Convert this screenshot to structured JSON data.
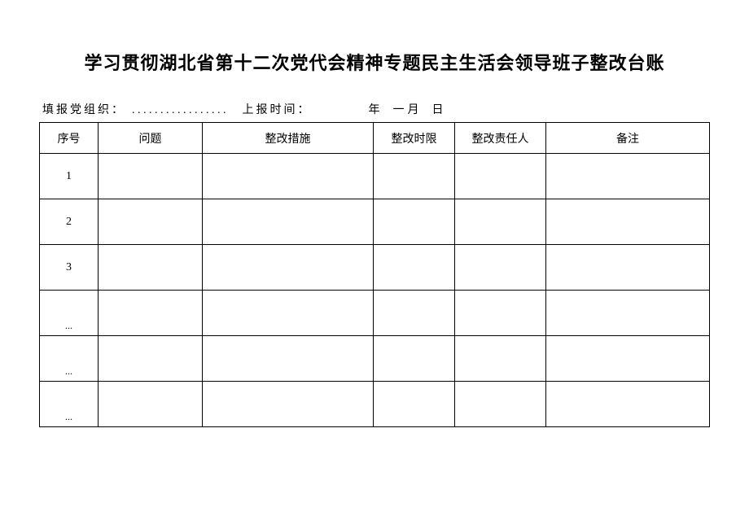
{
  "title": "学习贯彻湖北省第十二次党代会精神专题民主生活会领导班子整改台账",
  "meta": {
    "org_label": "填报党组织：",
    "org_dots": ". . . . . . . . . . . . . . . . .",
    "time_label": "上报时间：",
    "year_label": "年",
    "month_label": "一月",
    "day_label": "日"
  },
  "table": {
    "headers": {
      "seq": "序号",
      "problem": "问题",
      "measure": "整改措施",
      "deadline": "整改时限",
      "person": "整改责任人",
      "remark": "备注"
    },
    "rows": [
      {
        "seq": "1",
        "problem": "",
        "measure": "",
        "deadline": "",
        "person": "",
        "remark": ""
      },
      {
        "seq": "2",
        "problem": "",
        "measure": "",
        "deadline": "",
        "person": "",
        "remark": ""
      },
      {
        "seq": "3",
        "problem": "",
        "measure": "",
        "deadline": "",
        "person": "",
        "remark": ""
      },
      {
        "seq": "...",
        "problem": "",
        "measure": "",
        "deadline": "",
        "person": "",
        "remark": ""
      },
      {
        "seq": "...",
        "problem": "",
        "measure": "",
        "deadline": "",
        "person": "",
        "remark": ""
      },
      {
        "seq": "...",
        "problem": "",
        "measure": "",
        "deadline": "",
        "person": "",
        "remark": ""
      }
    ]
  }
}
